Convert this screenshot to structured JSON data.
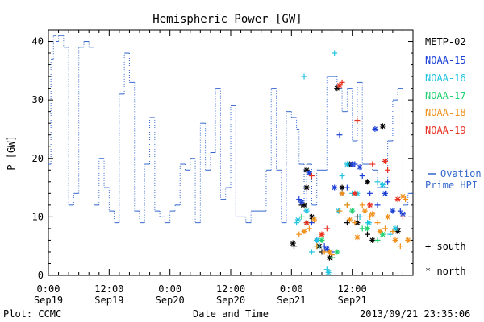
{
  "chart_data": {
    "type": "scatter",
    "title": "Hemispheric Power [GW]",
    "ylabel": "P [GW]",
    "xlabel": "Date and Time",
    "ylim": [
      0,
      42
    ],
    "yticks": [
      0,
      10,
      20,
      30,
      40
    ],
    "xlim": [
      0,
      72
    ],
    "xticks": [
      {
        "x": 0,
        "time": "0:00",
        "date": "Sep19"
      },
      {
        "x": 12,
        "time": "12:00",
        "date": "Sep19"
      },
      {
        "x": 24,
        "time": "0:00",
        "date": "Sep20"
      },
      {
        "x": 36,
        "time": "12:00",
        "date": "Sep20"
      },
      {
        "x": 48,
        "time": "0:00",
        "date": "Sep21"
      },
      {
        "x": 60,
        "time": "12:00",
        "date": "Sep21"
      }
    ],
    "footer_left": "Plot: CCMC",
    "footer_right": "2013/09/21 23:35:06",
    "ovation": {
      "name": "Ovation Prime HPI",
      "label_line1": "Ovation",
      "label_line2": "Prime HPI",
      "color": "#3366cc",
      "x": [
        0,
        0.5,
        1,
        1.5,
        2,
        3,
        4,
        5,
        6,
        7,
        8,
        9,
        10,
        11,
        12,
        13,
        14,
        15,
        16,
        17,
        18,
        19,
        20,
        21,
        22,
        23,
        24,
        25,
        26,
        27,
        28,
        29,
        30,
        31,
        32,
        33,
        34,
        35,
        36,
        37,
        38,
        39,
        40,
        41,
        42,
        43,
        44,
        45,
        46,
        47,
        48,
        49,
        49.5,
        50,
        50.5,
        51,
        52,
        53,
        54,
        55,
        56,
        57,
        58,
        59,
        60,
        61,
        62,
        63,
        64,
        65,
        66,
        67,
        68,
        69,
        70,
        71
      ],
      "y": [
        19,
        37,
        41,
        40,
        41,
        39,
        12,
        14,
        39,
        40,
        39,
        12,
        20,
        15,
        11,
        9,
        31,
        38,
        33,
        11,
        9,
        19,
        27,
        11,
        10,
        9,
        11,
        12,
        19,
        18,
        20,
        9,
        26,
        18,
        21,
        32,
        13,
        15,
        29,
        10,
        10,
        9,
        11,
        11,
        11,
        18,
        32,
        18,
        9,
        28,
        27,
        25,
        19,
        19,
        11,
        19,
        12,
        18,
        18,
        34,
        34,
        32,
        28,
        32,
        23,
        33,
        19,
        19,
        18,
        15,
        15,
        23,
        30,
        32,
        12,
        14
      ]
    },
    "series": [
      {
        "name": "METP-02",
        "color": "#000000",
        "south": [
          [
            48.5,
            5
          ],
          [
            54,
            4
          ],
          [
            56,
            3
          ],
          [
            61,
            10
          ],
          [
            63,
            7
          ],
          [
            69,
            8
          ],
          [
            50,
            12
          ],
          [
            59,
            9
          ]
        ],
        "north": [
          [
            48.3,
            5.5
          ],
          [
            50.5,
            12
          ],
          [
            51,
            15
          ],
          [
            52,
            10
          ],
          [
            53.5,
            5
          ],
          [
            55.5,
            3
          ],
          [
            57,
            32
          ],
          [
            58,
            15
          ],
          [
            59.5,
            19
          ],
          [
            61,
            9
          ],
          [
            63,
            16
          ],
          [
            64,
            6
          ],
          [
            66,
            25.5
          ],
          [
            69,
            7.5
          ],
          [
            51,
            18
          ]
        ]
      },
      {
        "name": "NOAA-15",
        "color": "#1a3fd6",
        "south": [
          [
            49.5,
            13
          ],
          [
            52,
            9
          ],
          [
            54.5,
            5
          ],
          [
            56,
            4
          ],
          [
            57.5,
            24
          ],
          [
            59,
            15
          ],
          [
            60.5,
            19
          ],
          [
            62,
            17
          ],
          [
            63.5,
            14
          ],
          [
            65,
            12
          ],
          [
            67,
            16
          ],
          [
            69.5,
            11
          ]
        ],
        "north": [
          [
            50,
            12.5
          ],
          [
            51.5,
            17.5
          ],
          [
            53,
            6
          ],
          [
            55,
            4.5
          ],
          [
            56.5,
            15
          ],
          [
            58,
            14
          ],
          [
            60,
            19
          ],
          [
            61.5,
            18.5
          ],
          [
            64.5,
            25
          ],
          [
            66.5,
            14
          ],
          [
            68,
            11
          ],
          [
            70,
            10.5
          ]
        ]
      },
      {
        "name": "NOAA-16",
        "color": "#22c4e0",
        "south": [
          [
            49,
            9
          ],
          [
            50.5,
            34
          ],
          [
            52,
            4
          ],
          [
            53.5,
            5
          ],
          [
            55,
            1
          ],
          [
            56.5,
            38
          ],
          [
            58,
            17
          ],
          [
            60,
            14
          ],
          [
            61.5,
            10
          ],
          [
            63,
            9
          ],
          [
            65,
            16
          ],
          [
            67.5,
            7
          ]
        ],
        "north": [
          [
            49.3,
            9.5
          ],
          [
            51,
            11
          ],
          [
            53,
            6
          ],
          [
            55.3,
            0.5
          ],
          [
            57.3,
            11
          ],
          [
            59,
            19
          ],
          [
            61,
            14
          ],
          [
            63.3,
            9
          ],
          [
            66,
            15.5
          ],
          [
            68.5,
            8
          ]
        ]
      },
      {
        "name": "NOAA-17",
        "color": "#20d070",
        "south": [
          [
            50,
            10
          ],
          [
            53,
            5
          ],
          [
            56,
            3
          ],
          [
            59,
            12
          ],
          [
            62,
            8
          ],
          [
            65,
            6
          ]
        ],
        "north": [
          [
            51,
            9
          ],
          [
            54,
            6
          ],
          [
            57,
            4
          ],
          [
            60,
            11
          ],
          [
            63,
            8
          ],
          [
            66,
            7
          ]
        ]
      },
      {
        "name": "NOAA-18",
        "color": "#f0901a",
        "south": [
          [
            49.5,
            7
          ],
          [
            51.5,
            8
          ],
          [
            53,
            5
          ],
          [
            54.5,
            4
          ],
          [
            56,
            3.5
          ],
          [
            57.5,
            11
          ],
          [
            59,
            12
          ],
          [
            60.5,
            9
          ],
          [
            62,
            12
          ],
          [
            63.5,
            10
          ],
          [
            65,
            9
          ],
          [
            66.5,
            8
          ],
          [
            68,
            7.5
          ],
          [
            69.5,
            5
          ],
          [
            70.5,
            13
          ]
        ],
        "north": [
          [
            50.5,
            7.5
          ],
          [
            52.5,
            9.5
          ],
          [
            54,
            7
          ],
          [
            55.5,
            4
          ],
          [
            58,
            14
          ],
          [
            59.5,
            9.5
          ],
          [
            61,
            6.5
          ],
          [
            62.5,
            11
          ],
          [
            64,
            10.5
          ],
          [
            65.5,
            7.5
          ],
          [
            67,
            10
          ],
          [
            68.5,
            6
          ],
          [
            70,
            13.5
          ],
          [
            71,
            6
          ]
        ]
      },
      {
        "name": "NOAA-19",
        "color": "#e83020",
        "south": [
          [
            52,
            17
          ],
          [
            55,
            8
          ],
          [
            58,
            33
          ],
          [
            61,
            26.5
          ],
          [
            64,
            19
          ],
          [
            67,
            18
          ],
          [
            70,
            10
          ]
        ],
        "north": [
          [
            51,
            9
          ],
          [
            54,
            7
          ],
          [
            57.5,
            32.5
          ],
          [
            60.5,
            14
          ],
          [
            63.5,
            12
          ],
          [
            66.5,
            19.5
          ],
          [
            69,
            13
          ]
        ]
      }
    ],
    "legend_position": "right",
    "marker_legend": {
      "south": "+ south",
      "north": "* north"
    },
    "grid": false
  }
}
